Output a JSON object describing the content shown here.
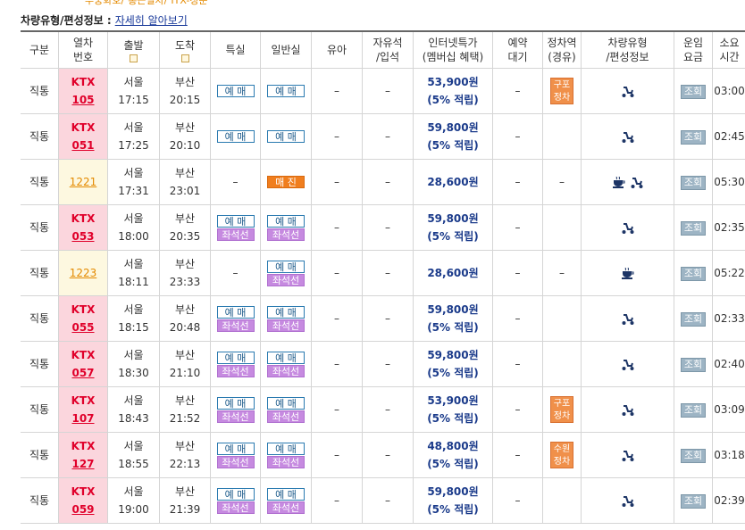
{
  "top_links": [
    "무궁화호/",
    "통근열차/",
    "ITX-청춘"
  ],
  "info": {
    "label": "차량유형/편성정보 :",
    "link": "자세히 알아보기"
  },
  "table": {
    "columns": [
      [
        "구분"
      ],
      [
        "열차",
        "번호"
      ],
      [
        "출발"
      ],
      [
        "도착"
      ],
      [
        "특실"
      ],
      [
        "일반실"
      ],
      [
        "유아"
      ],
      [
        "자유석",
        "/입석"
      ],
      [
        "인터넷특가",
        "(멤버십 혜택)"
      ],
      [
        "예약",
        "대기"
      ],
      [
        "정차역",
        "(경유)"
      ],
      [
        "차량유형",
        "/편성정보"
      ],
      [
        "운임",
        "요금"
      ],
      [
        "소요",
        "시간"
      ]
    ],
    "rows": [
      {
        "type": "직통",
        "train_type": "KTX",
        "train_no": "105",
        "dep_station": "서울",
        "dep_time": "17:15",
        "arr_station": "부산",
        "arr_time": "20:15",
        "special": [
          "예 매"
        ],
        "general": [
          "예 매"
        ],
        "infant": "–",
        "free_seat": "–",
        "price": "53,900원",
        "price_note": "(5% 적립)",
        "waitlist": "–",
        "stop": [
          "구포",
          "정차"
        ],
        "fare": "조회",
        "duration": "03:00"
      },
      {
        "type": "직통",
        "train_type": "KTX",
        "train_no": "051",
        "dep_station": "서울",
        "dep_time": "17:25",
        "arr_station": "부산",
        "arr_time": "20:10",
        "special": [
          "예 매"
        ],
        "general": [
          "예 매"
        ],
        "infant": "–",
        "free_seat": "–",
        "price": "59,800원",
        "price_note": "(5% 적립)",
        "waitlist": "–",
        "fare": "조회",
        "duration": "02:45"
      },
      {
        "type": "직통",
        "train_no": "1221",
        "dep_station": "서울",
        "dep_time": "17:31",
        "arr_station": "부산",
        "arr_time": "23:01",
        "special": "–",
        "general": [
          "매 진"
        ],
        "sold_out": true,
        "infant": "–",
        "free_seat": "–",
        "price": "28,600원",
        "waitlist": "–",
        "stop": "–",
        "fare": "조회",
        "duration": "05:30"
      },
      {
        "type": "직통",
        "train_type": "KTX",
        "train_no": "053",
        "dep_station": "서울",
        "dep_time": "18:00",
        "arr_station": "부산",
        "arr_time": "20:35",
        "special": [
          "예 매",
          "좌석선택"
        ],
        "general": [
          "예 매",
          "좌석선택"
        ],
        "infant": "–",
        "free_seat": "–",
        "price": "59,800원",
        "price_note": "(5% 적립)",
        "waitlist": "–",
        "fare": "조회",
        "duration": "02:35"
      },
      {
        "type": "직통",
        "train_no": "1223",
        "dep_station": "서울",
        "dep_time": "18:11",
        "arr_station": "부산",
        "arr_time": "23:33",
        "special": "–",
        "general": [
          "예 매",
          "좌석선택"
        ],
        "infant": "–",
        "free_seat": "–",
        "price": "28,600원",
        "waitlist": "–",
        "stop": "–",
        "fare": "조회",
        "duration": "05:22"
      },
      {
        "type": "직통",
        "train_type": "KTX",
        "train_no": "055",
        "dep_station": "서울",
        "dep_time": "18:15",
        "arr_station": "부산",
        "arr_time": "20:48",
        "special": [
          "예 매",
          "좌석선택"
        ],
        "general": [
          "예 매",
          "좌석선택"
        ],
        "infant": "–",
        "free_seat": "–",
        "price": "59,800원",
        "price_note": "(5% 적립)",
        "waitlist": "–",
        "fare": "조회",
        "duration": "02:33"
      },
      {
        "type": "직통",
        "train_type": "KTX",
        "train_no": "057",
        "dep_station": "서울",
        "dep_time": "18:30",
        "arr_station": "부산",
        "arr_time": "21:10",
        "special": [
          "예 매",
          "좌석선택"
        ],
        "general": [
          "예 매",
          "좌석선택"
        ],
        "infant": "–",
        "free_seat": "–",
        "price": "59,800원",
        "price_note": "(5% 적립)",
        "waitlist": "–",
        "fare": "조회",
        "duration": "02:40"
      },
      {
        "type": "직통",
        "train_type": "KTX",
        "train_no": "107",
        "dep_station": "서울",
        "dep_time": "18:43",
        "arr_station": "부산",
        "arr_time": "21:52",
        "special": [
          "예 매",
          "좌석선택"
        ],
        "general": [
          "예 매",
          "좌석선택"
        ],
        "infant": "–",
        "free_seat": "–",
        "price": "53,900원",
        "price_note": "(5% 적립)",
        "waitlist": "–",
        "stop": [
          "구포",
          "정차"
        ],
        "fare": "조회",
        "duration": "03:09"
      },
      {
        "type": "직통",
        "train_type": "KTX",
        "train_no": "127",
        "dep_station": "서울",
        "dep_time": "18:55",
        "arr_station": "부산",
        "arr_time": "22:13",
        "special": [
          "예 매",
          "좌석선택"
        ],
        "general": [
          "예 매",
          "좌석선택"
        ],
        "infant": "–",
        "free_seat": "–",
        "price": "48,800원",
        "price_note": "(5% 적립)",
        "waitlist": "–",
        "stop": [
          "수원",
          "정차"
        ],
        "fare": "조회",
        "duration": "03:18"
      },
      {
        "type": "직통",
        "train_type": "KTX",
        "train_no": "059",
        "dep_station": "서울",
        "dep_time": "19:00",
        "arr_station": "부산",
        "arr_time": "21:39",
        "special": [
          "예 매",
          "좌석선택"
        ],
        "general": [
          "예 매",
          "좌석선택"
        ],
        "infant": "–",
        "free_seat": "–",
        "price": "59,800원",
        "price_note": "(5% 적립)",
        "waitlist": "–",
        "fare": "조회",
        "duration": "02:39"
      }
    ]
  }
}
